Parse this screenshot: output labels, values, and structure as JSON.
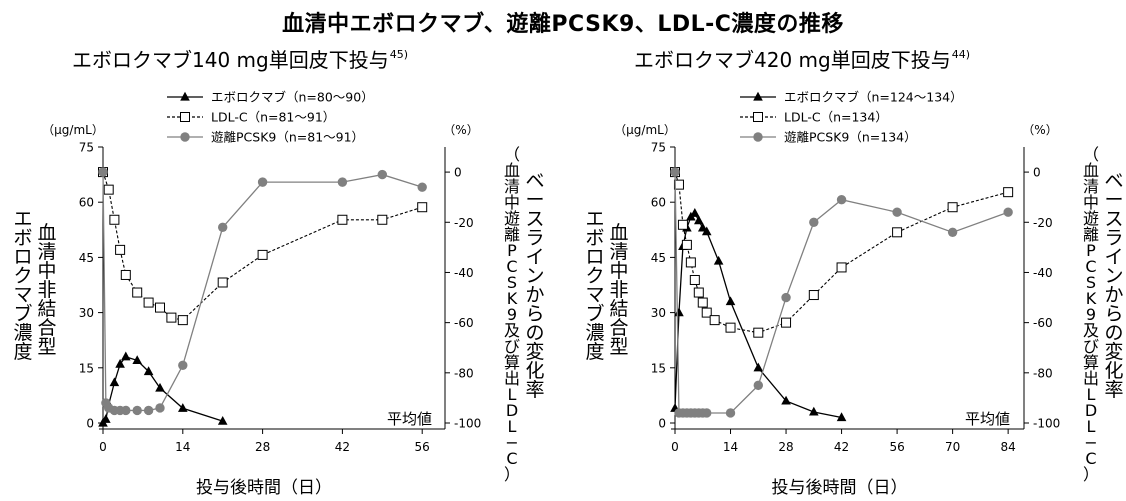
{
  "title": "血清中エボロクマブ、遊離PCSK9、LDL-C濃度の推移",
  "panels": [
    {
      "title": "エボロクマブ140 mg単回皮下投与",
      "ref": "45)",
      "left_unit": "（μg/mL）",
      "right_unit": "（%）",
      "y_left_label": [
        "血清中非結合型",
        "エボロクマブ濃度"
      ],
      "y_right_label": [
        "ベースラインからの変化率",
        "（血清中遊離PCSK9及び算出LDL−C）"
      ],
      "xlabel": "投与後時間（日）",
      "note": "平均値"
    },
    {
      "title": "エボロクマブ420 mg単回皮下投与",
      "ref": "44)",
      "left_unit": "（μg/mL）",
      "right_unit": "（%）",
      "y_left_label": [
        "血清中非結合型",
        "エボロクマブ濃度"
      ],
      "y_right_label": [
        "ベースラインからの変化率",
        "（血清中遊離PCSK9及び算出LDL−C）"
      ],
      "xlabel": "投与後時間（日）",
      "note": "平均値"
    }
  ],
  "chart_data": [
    {
      "type": "line",
      "title": "エボロクマブ140 mg単回皮下投与",
      "xlabel": "投与後時間（日）",
      "ylabel": "血清中非結合型エボロクマブ濃度",
      "ylabel_right": "ベースラインからの変化率（血清中遊離PCSK9及び算出LDL−C）",
      "xticks": [
        0,
        14,
        28,
        42,
        56
      ],
      "xlim": [
        0,
        60
      ],
      "yticks_left": [
        0,
        15,
        30,
        45,
        60,
        75
      ],
      "ylim_left": [
        0,
        75
      ],
      "yticks_right": [
        -100,
        -80,
        -60,
        -40,
        -20,
        0
      ],
      "ylim_right": [
        -100,
        10
      ],
      "series": [
        {
          "name": "エボロクマブ（n=80〜90）",
          "axis": "left",
          "marker": "triangle",
          "color": "#000000",
          "dash": "solid",
          "x": [
            0,
            0.5,
            1,
            2,
            3,
            4,
            6,
            8,
            10,
            14,
            21
          ],
          "y": [
            0,
            1,
            5,
            11,
            16,
            18,
            17,
            14,
            9.5,
            4,
            0.5
          ]
        },
        {
          "name": "LDL-C（n=81〜91）",
          "axis": "right",
          "marker": "square",
          "color": "#000000",
          "dash": "dashed",
          "x": [
            0,
            1,
            2,
            3,
            4,
            6,
            8,
            10,
            12,
            14,
            21,
            28,
            42,
            49,
            56
          ],
          "y": [
            0,
            -7,
            -19,
            -31,
            -41,
            -48,
            -52,
            -54,
            -58,
            -59,
            -44,
            -33,
            -19,
            -19,
            -14
          ]
        },
        {
          "name": "遊離PCSK9（n=81〜91）",
          "axis": "right",
          "marker": "circle",
          "color": "#808080",
          "dash": "solid",
          "x": [
            0,
            0.5,
            1,
            2,
            3,
            4,
            6,
            8,
            10,
            14,
            21,
            28,
            42,
            49,
            56
          ],
          "y": [
            0,
            -92,
            -94,
            -95,
            -95,
            -95,
            -95,
            -95,
            -94,
            -77,
            -22,
            -4,
            -4,
            -1,
            -6
          ]
        }
      ]
    },
    {
      "type": "line",
      "title": "エボロクマブ420 mg単回皮下投与",
      "xlabel": "投与後時間（日）",
      "ylabel": "血清中非結合型エボロクマブ濃度",
      "ylabel_right": "ベースラインからの変化率（血清中遊離PCSK9及び算出LDL−C）",
      "xticks": [
        0,
        14,
        28,
        42,
        56,
        70,
        84
      ],
      "xlim": [
        0,
        88
      ],
      "yticks_left": [
        0,
        15,
        30,
        45,
        60,
        75
      ],
      "ylim_left": [
        0,
        75
      ],
      "yticks_right": [
        -100,
        -80,
        -60,
        -40,
        -20,
        0
      ],
      "ylim_right": [
        -100,
        10
      ],
      "series": [
        {
          "name": "エボロクマブ（n=124〜134）",
          "axis": "left",
          "marker": "triangle",
          "color": "#000000",
          "dash": "solid",
          "x": [
            0,
            1,
            2,
            3,
            4,
            5,
            6,
            7,
            8,
            11,
            14,
            21,
            28,
            35,
            42
          ],
          "y": [
            4,
            30,
            48,
            53,
            56,
            57,
            55,
            53,
            52,
            44,
            33,
            15,
            6,
            3,
            1.5
          ]
        },
        {
          "name": "LDL-C（n=134）",
          "axis": "right",
          "marker": "square",
          "color": "#000000",
          "dash": "dashed",
          "x": [
            0,
            1,
            2,
            3,
            4,
            5,
            6,
            7,
            8,
            10,
            14,
            21,
            28,
            35,
            42,
            56,
            70,
            84
          ],
          "y": [
            0,
            -5,
            -21,
            -29,
            -36,
            -43,
            -48,
            -52,
            -56,
            -59,
            -62,
            -64,
            -60,
            -49,
            -38,
            -24,
            -14,
            -8
          ]
        },
        {
          "name": "遊離PCSK9（n=134）",
          "axis": "right",
          "marker": "circle",
          "color": "#808080",
          "dash": "solid",
          "x": [
            0,
            1,
            2,
            3,
            4,
            5,
            6,
            7,
            8,
            14,
            21,
            28,
            35,
            42,
            56,
            70,
            84
          ],
          "y": [
            0,
            -96,
            -96,
            -96,
            -96,
            -96,
            -96,
            -96,
            -96,
            -96,
            -85,
            -50,
            -20,
            -11,
            -16,
            -24,
            -16
          ]
        }
      ]
    }
  ]
}
